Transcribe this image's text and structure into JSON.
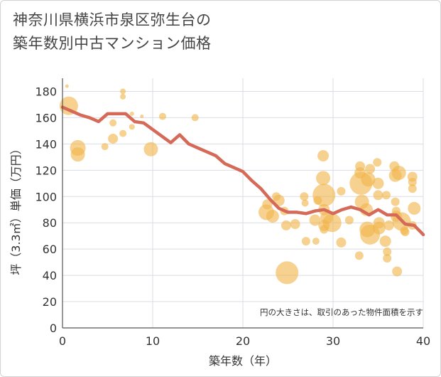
{
  "title_line1": "神奈川県横浜市泉区弥生台の",
  "title_line2": "築年数別中古マンション価格",
  "chart_data": {
    "type": "scatter",
    "title": "神奈川県横浜市泉区弥生台の築年数別中古マンション価格",
    "xlabel": "築年数（年）",
    "ylabel": "坪（3.3㎡）単価（万円）",
    "xlim": [
      0,
      40
    ],
    "ylim": [
      0,
      190
    ],
    "xticks": [
      0,
      10,
      20,
      30,
      40
    ],
    "yticks": [
      0,
      20,
      40,
      60,
      80,
      100,
      120,
      140,
      160,
      180
    ],
    "grid": true,
    "note": "円の大きさは、取引のあった物件面積を示す",
    "colors": {
      "bubble": "#f0b54c",
      "line": "#d46a57",
      "grid": "#d9dde3",
      "axis": "#555555"
    },
    "bubbles": [
      {
        "x": 0.5,
        "y": 184,
        "r": 2.5
      },
      {
        "x": 0.7,
        "y": 169,
        "r": 13
      },
      {
        "x": 1.7,
        "y": 137,
        "r": 11
      },
      {
        "x": 1.7,
        "y": 132,
        "r": 10
      },
      {
        "x": 4.7,
        "y": 138,
        "r": 5
      },
      {
        "x": 5.6,
        "y": 156,
        "r": 5
      },
      {
        "x": 5.6,
        "y": 144,
        "r": 7
      },
      {
        "x": 6.7,
        "y": 180,
        "r": 4
      },
      {
        "x": 6.7,
        "y": 176,
        "r": 4
      },
      {
        "x": 6.7,
        "y": 148,
        "r": 5
      },
      {
        "x": 7.7,
        "y": 163,
        "r": 3
      },
      {
        "x": 7.7,
        "y": 153,
        "r": 4
      },
      {
        "x": 8.8,
        "y": 161,
        "r": 2.5
      },
      {
        "x": 9.8,
        "y": 136,
        "r": 10
      },
      {
        "x": 11.1,
        "y": 161,
        "r": 5
      },
      {
        "x": 14.7,
        "y": 160,
        "r": 5
      },
      {
        "x": 22.6,
        "y": 88,
        "r": 11
      },
      {
        "x": 22.7,
        "y": 94,
        "r": 7
      },
      {
        "x": 23.3,
        "y": 85,
        "r": 9
      },
      {
        "x": 23.7,
        "y": 100,
        "r": 6
      },
      {
        "x": 24.0,
        "y": 97,
        "r": 8
      },
      {
        "x": 24.6,
        "y": 89,
        "r": 6
      },
      {
        "x": 24.8,
        "y": 78,
        "r": 7
      },
      {
        "x": 24.9,
        "y": 42,
        "r": 16
      },
      {
        "x": 25.8,
        "y": 79,
        "r": 7
      },
      {
        "x": 26.8,
        "y": 100,
        "r": 6
      },
      {
        "x": 26.9,
        "y": 95,
        "r": 5
      },
      {
        "x": 27.0,
        "y": 66,
        "r": 6
      },
      {
        "x": 28.0,
        "y": 82,
        "r": 8
      },
      {
        "x": 28.1,
        "y": 66,
        "r": 5
      },
      {
        "x": 28.3,
        "y": 97,
        "r": 6
      },
      {
        "x": 28.9,
        "y": 131,
        "r": 8
      },
      {
        "x": 28.9,
        "y": 114,
        "r": 10
      },
      {
        "x": 29.0,
        "y": 101,
        "r": 16
      },
      {
        "x": 29.0,
        "y": 90,
        "r": 8
      },
      {
        "x": 29.0,
        "y": 78,
        "r": 8
      },
      {
        "x": 29.0,
        "y": 75,
        "r": 6
      },
      {
        "x": 29.3,
        "y": 84,
        "r": 9
      },
      {
        "x": 29.9,
        "y": 80,
        "r": 13
      },
      {
        "x": 30.9,
        "y": 104,
        "r": 6
      },
      {
        "x": 30.9,
        "y": 65,
        "r": 7
      },
      {
        "x": 31.8,
        "y": 82,
        "r": 6
      },
      {
        "x": 32.9,
        "y": 55,
        "r": 6
      },
      {
        "x": 33.0,
        "y": 123,
        "r": 7
      },
      {
        "x": 33.0,
        "y": 118,
        "r": 8
      },
      {
        "x": 33.1,
        "y": 110,
        "r": 16
      },
      {
        "x": 33.2,
        "y": 96,
        "r": 10
      },
      {
        "x": 33.7,
        "y": 90,
        "r": 9
      },
      {
        "x": 33.8,
        "y": 75,
        "r": 11
      },
      {
        "x": 33.9,
        "y": 113,
        "r": 10
      },
      {
        "x": 34.1,
        "y": 121,
        "r": 7
      },
      {
        "x": 34.1,
        "y": 71,
        "r": 14
      },
      {
        "x": 34.9,
        "y": 126,
        "r": 6
      },
      {
        "x": 35.0,
        "y": 110,
        "r": 8
      },
      {
        "x": 35.0,
        "y": 101,
        "r": 7
      },
      {
        "x": 35.1,
        "y": 80,
        "r": 8
      },
      {
        "x": 35.1,
        "y": 76,
        "r": 9
      },
      {
        "x": 35.8,
        "y": 66,
        "r": 8
      },
      {
        "x": 35.9,
        "y": 101,
        "r": 6
      },
      {
        "x": 36.0,
        "y": 58,
        "r": 6
      },
      {
        "x": 36.0,
        "y": 53,
        "r": 6
      },
      {
        "x": 36.2,
        "y": 78,
        "r": 7
      },
      {
        "x": 36.8,
        "y": 123,
        "r": 7
      },
      {
        "x": 36.9,
        "y": 116,
        "r": 9
      },
      {
        "x": 36.9,
        "y": 96,
        "r": 6
      },
      {
        "x": 37.0,
        "y": 89,
        "r": 6
      },
      {
        "x": 37.0,
        "y": 85,
        "r": 8
      },
      {
        "x": 37.1,
        "y": 43,
        "r": 7
      },
      {
        "x": 37.3,
        "y": 118,
        "r": 10
      },
      {
        "x": 37.6,
        "y": 81,
        "r": 13
      },
      {
        "x": 37.9,
        "y": 74,
        "r": 6
      },
      {
        "x": 38.0,
        "y": 73,
        "r": 6
      },
      {
        "x": 38.8,
        "y": 115,
        "r": 7
      },
      {
        "x": 38.8,
        "y": 111,
        "r": 6
      },
      {
        "x": 38.8,
        "y": 106,
        "r": 6
      },
      {
        "x": 38.8,
        "y": 78,
        "r": 6
      },
      {
        "x": 39.0,
        "y": 91,
        "r": 9
      }
    ],
    "series": [
      {
        "values_x": [
          0,
          1,
          2,
          3,
          4,
          5,
          6,
          7,
          8,
          9,
          10,
          11,
          12,
          13,
          14,
          15,
          16,
          17,
          18,
          19,
          20,
          21,
          22,
          23,
          24,
          25,
          26,
          27,
          28,
          29,
          30,
          31,
          32,
          33,
          34,
          35,
          36,
          37,
          38,
          39,
          40
        ],
        "values_y": [
          168,
          165,
          162,
          160,
          157,
          163,
          163,
          163,
          157,
          156,
          151,
          146,
          141,
          147,
          140,
          137,
          134,
          131,
          125,
          122,
          119,
          112,
          106,
          98,
          91,
          88,
          88,
          87,
          89,
          90,
          87,
          90,
          92,
          90,
          86,
          90,
          86,
          86,
          79,
          78,
          71
        ]
      }
    ]
  }
}
